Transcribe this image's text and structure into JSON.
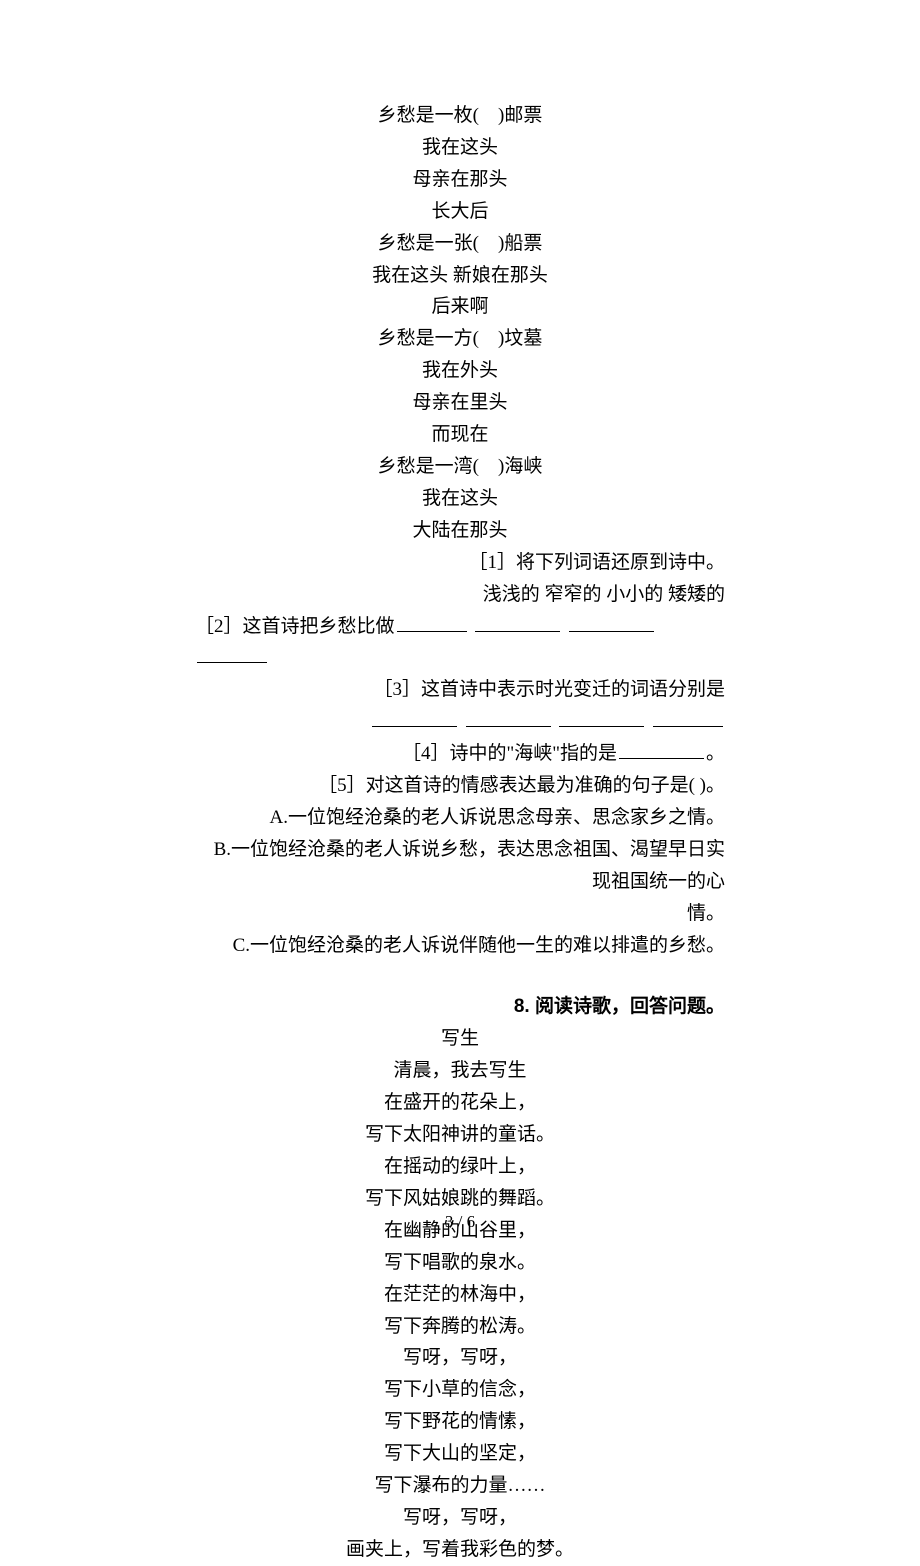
{
  "poem1": {
    "l1": "乡愁是一枚(　)邮票",
    "l2": "我在这头",
    "l3": "母亲在那头",
    "l4": "长大后",
    "l5": "乡愁是一张(　)船票",
    "l6": "我在这头 新娘在那头",
    "l7": "后来啊",
    "l8": "乡愁是一方(　)坟墓",
    "l9": "我在外头",
    "l10": "母亲在里头",
    "l11": "而现在",
    "l12": "乡愁是一湾(　)海峡",
    "l13": "我在这头",
    "l14": "大陆在那头"
  },
  "q1": {
    "line1": "［1］将下列词语还原到诗中。",
    "line2": "浅浅的 窄窄的 小小的 矮矮的"
  },
  "q2_prefix": "［2］这首诗把乡愁比做",
  "q3_text": "［3］这首诗中表示时光变迁的词语分别是",
  "q4_prefix": "［4］诗中的\"海峡\"指的是",
  "q4_suffix": "。",
  "q5": {
    "stem": "［5］对这首诗的情感表达最为准确的句子是( )。",
    "a": "A.一位饱经沧桑的老人诉说思念母亲、思念家乡之情。",
    "b": "B.一位饱经沧桑的老人诉说乡愁，表达思念祖国、渴望早日实现祖国统一的心",
    "b2": "情。",
    "c": "C.一位饱经沧桑的老人诉说伴随他一生的难以排遣的乡愁。"
  },
  "section8": "8. 阅读诗歌，回答问题。",
  "poem2": {
    "title": "写生",
    "l1": "清晨，我去写生",
    "l2": "在盛开的花朵上，",
    "l3": "写下太阳神讲的童话。",
    "l4": "在摇动的绿叶上，",
    "l5": "写下风姑娘跳的舞蹈。",
    "l6": "在幽静的山谷里，",
    "l7": "写下唱歌的泉水。",
    "l8": "在茫茫的林海中，",
    "l9": "写下奔腾的松涛。",
    "l10": "写呀，写呀，",
    "l11": "写下小草的信念，",
    "l12": "写下野花的情愫，",
    "l13": "写下大山的坚定，",
    "l14": "写下瀑布的力量……",
    "l15": "写呀，写呀，",
    "l16": "画夹上，写着我彩色的梦。"
  },
  "pagenum": "3 / 6"
}
